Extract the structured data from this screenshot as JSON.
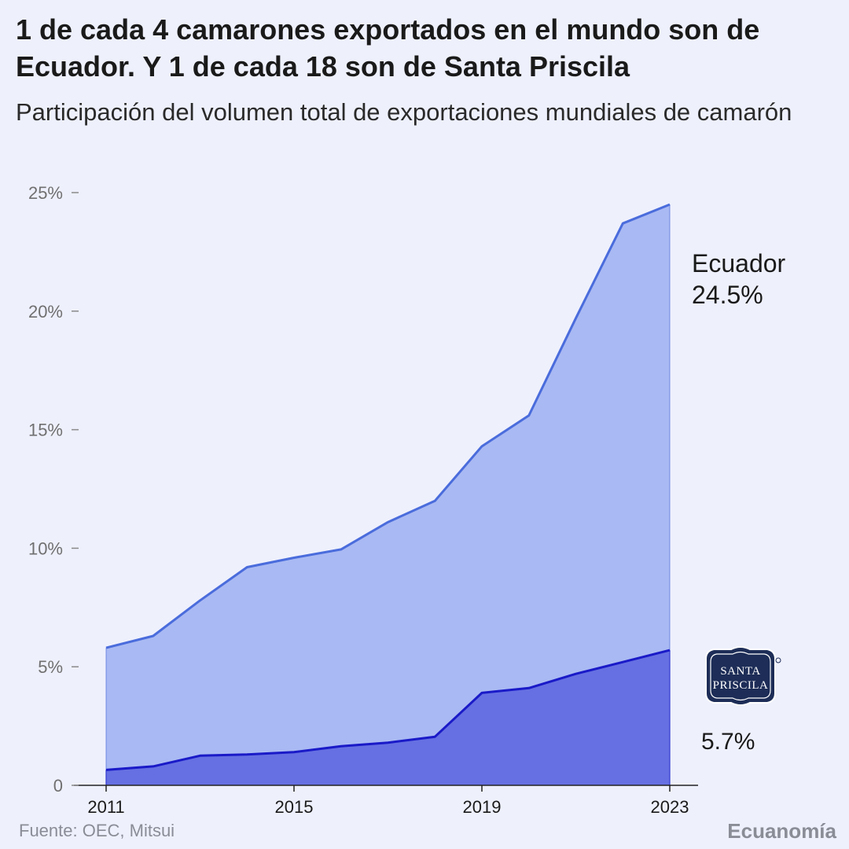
{
  "title": "1 de cada 4 camarones exportados en el mundo son de Ecuador. Y 1 de cada 18 son de Santa Priscila",
  "subtitle": "Participación del volumen total de exportaciones mundiales de camarón",
  "source": "Fuente: OEC, Mitsui",
  "brand": "Ecuanomía",
  "logo_text": [
    "SANTA",
    "PRISCILA"
  ],
  "colors": {
    "ecuador_fill": "#a9b9f3",
    "ecuador_line": "#4a6cdc",
    "sp_fill": "#6670e2",
    "sp_line": "#1a1ac8",
    "axis_text": "#707070",
    "logo_navy": "#1d2d57"
  },
  "chart_data": {
    "type": "area",
    "x": [
      2011,
      2012,
      2013,
      2014,
      2015,
      2016,
      2017,
      2018,
      2019,
      2020,
      2021,
      2022,
      2023
    ],
    "series": [
      {
        "name": "Ecuador",
        "values": [
          5.8,
          6.3,
          7.8,
          9.2,
          9.6,
          9.95,
          11.1,
          12.0,
          14.3,
          15.6,
          19.7,
          23.7,
          24.5
        ],
        "end_label": "Ecuador",
        "end_value_label": "24.5%"
      },
      {
        "name": "Santa Priscila",
        "values": [
          0.65,
          0.8,
          1.25,
          1.3,
          1.4,
          1.65,
          1.8,
          2.05,
          3.9,
          4.1,
          4.7,
          5.2,
          5.7
        ],
        "end_value_label": "5.7%"
      }
    ],
    "x_ticks": [
      "2011",
      "2015",
      "2019",
      "2023"
    ],
    "y_ticks": [
      "0",
      "5%",
      "10%",
      "15%",
      "20%",
      "25%"
    ],
    "y_tick_values": [
      0,
      5,
      10,
      15,
      20,
      25
    ],
    "ylim": [
      0,
      25
    ],
    "xlim": [
      2011,
      2023
    ],
    "grid": false,
    "xlabel": "",
    "ylabel": ""
  }
}
